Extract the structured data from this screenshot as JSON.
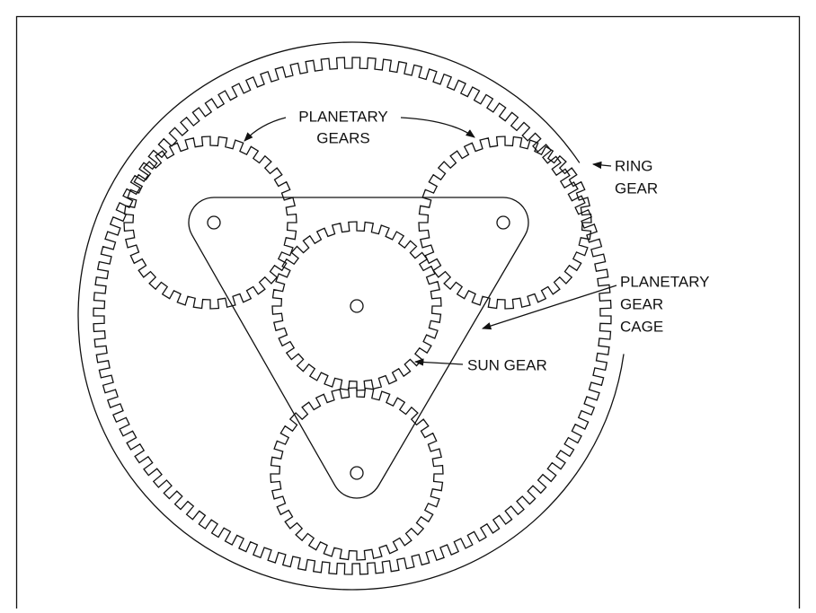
{
  "labels": {
    "planetary_gears": [
      "PLANETARY",
      "GEARS"
    ],
    "ring_gear": [
      "RING",
      "GEAR"
    ],
    "planetary_gear_cage": [
      "PLANETARY",
      "GEAR",
      "CAGE"
    ],
    "sun_gear": [
      "SUN GEAR"
    ]
  }
}
